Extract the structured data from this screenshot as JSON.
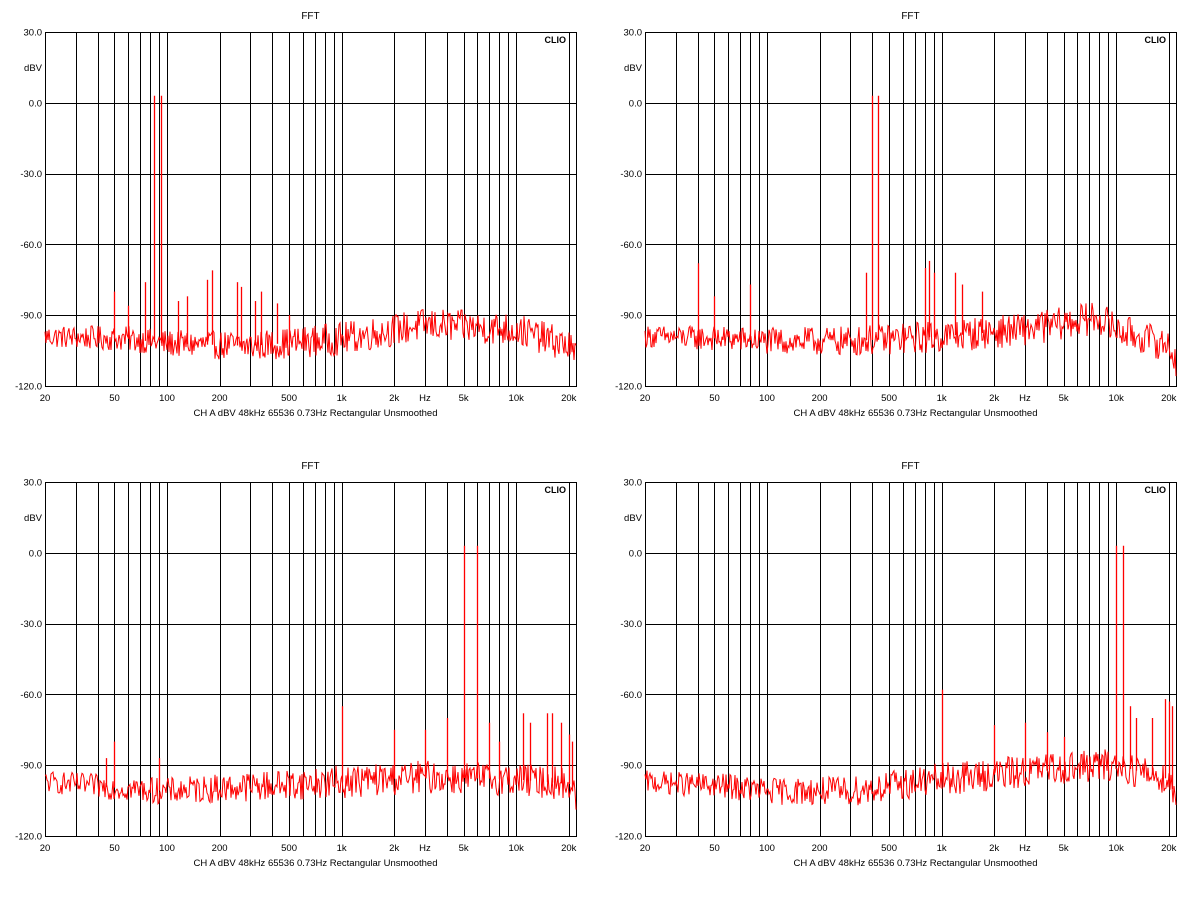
{
  "chart_data": [
    {
      "type": "line",
      "title": "FFT",
      "brand": "CLIO",
      "ylabel": "dBV",
      "xlabel": "",
      "x_scale": "log",
      "xlim": [
        20,
        22000
      ],
      "ylim": [
        -120,
        30
      ],
      "y_ticks": [
        30,
        0,
        -30,
        -60,
        -90,
        -120
      ],
      "y_tick_labels": [
        "30.0",
        "0.0",
        "-30.0",
        "-60.0",
        "-90.0",
        "-120.0"
      ],
      "x_ticks": [
        20,
        50,
        100,
        200,
        500,
        1000,
        2000,
        3000,
        5000,
        10000,
        20000
      ],
      "x_tick_labels": [
        "20",
        "50",
        "100",
        "200",
        "500",
        "1k",
        "2k",
        "Hz",
        "5k",
        "10k",
        "20k"
      ],
      "footer": "CH A   dBV   48kHz   65536   0.73Hz   Rectangular   Unsmoothed",
      "grid": true,
      "series": [
        {
          "color": "#ff0000",
          "noise_floor": [
            [
              20,
              -99
            ],
            [
              60,
              -100
            ],
            [
              100,
              -102
            ],
            [
              300,
              -103
            ],
            [
              1000,
              -100
            ],
            [
              3000,
              -94
            ],
            [
              10000,
              -96
            ],
            [
              20000,
              -103
            ],
            [
              22000,
              -108
            ]
          ],
          "peaks": [
            [
              50,
              -80
            ],
            [
              60,
              -86
            ],
            [
              75,
              -76
            ],
            [
              84,
              3
            ],
            [
              92,
              3
            ],
            [
              115,
              -84
            ],
            [
              130,
              -82
            ],
            [
              170,
              -75
            ],
            [
              180,
              -71
            ],
            [
              250,
              -76
            ],
            [
              265,
              -78
            ],
            [
              320,
              -84
            ],
            [
              345,
              -80
            ],
            [
              425,
              -85
            ],
            [
              500,
              -90
            ]
          ]
        }
      ]
    },
    {
      "type": "line",
      "title": "FFT",
      "brand": "CLIO",
      "ylabel": "dBV",
      "xlabel": "",
      "x_scale": "log",
      "xlim": [
        20,
        22000
      ],
      "ylim": [
        -120,
        30
      ],
      "y_ticks": [
        30,
        0,
        -30,
        -60,
        -90,
        -120
      ],
      "y_tick_labels": [
        "30.0",
        "0.0",
        "-30.0",
        "-60.0",
        "-90.0",
        "-120.0"
      ],
      "x_ticks": [
        20,
        50,
        100,
        200,
        500,
        1000,
        2000,
        3000,
        5000,
        10000,
        20000
      ],
      "x_tick_labels": [
        "20",
        "50",
        "100",
        "200",
        "500",
        "1k",
        "2k",
        "Hz",
        "5k",
        "10k",
        "20k"
      ],
      "footer": "CH A   dBV   48kHz   65536   0.73Hz   Rectangular   Unsmoothed",
      "grid": true,
      "series": [
        {
          "color": "#ff0000",
          "noise_floor": [
            [
              20,
              -99
            ],
            [
              60,
              -100
            ],
            [
              100,
              -101
            ],
            [
              300,
              -101
            ],
            [
              1000,
              -99
            ],
            [
              3000,
              -96
            ],
            [
              8000,
              -91
            ],
            [
              10000,
              -96
            ],
            [
              20000,
              -103
            ],
            [
              22000,
              -109
            ]
          ],
          "peaks": [
            [
              40,
              -68
            ],
            [
              50,
              -82
            ],
            [
              80,
              -77
            ],
            [
              370,
              -72
            ],
            [
              400,
              3
            ],
            [
              430,
              3
            ],
            [
              800,
              -70
            ],
            [
              850,
              -67
            ],
            [
              900,
              -72
            ],
            [
              1200,
              -72
            ],
            [
              1300,
              -77
            ],
            [
              1700,
              -80
            ]
          ]
        }
      ]
    },
    {
      "type": "line",
      "title": "FFT",
      "brand": "CLIO",
      "ylabel": "dBV",
      "xlabel": "",
      "x_scale": "log",
      "xlim": [
        20,
        22000
      ],
      "ylim": [
        -120,
        30
      ],
      "y_ticks": [
        30,
        0,
        -30,
        -60,
        -90,
        -120
      ],
      "y_tick_labels": [
        "30.0",
        "0.0",
        "-30.0",
        "-60.0",
        "-90.0",
        "-120.0"
      ],
      "x_ticks": [
        20,
        50,
        100,
        200,
        500,
        1000,
        2000,
        3000,
        5000,
        10000,
        20000
      ],
      "x_tick_labels": [
        "20",
        "50",
        "100",
        "200",
        "500",
        "1k",
        "2k",
        "Hz",
        "5k",
        "10k",
        "20k"
      ],
      "footer": "CH A   dBV   48kHz   65536   0.73Hz   Rectangular   Unsmoothed",
      "grid": true,
      "series": [
        {
          "color": "#ff0000",
          "noise_floor": [
            [
              20,
              -97
            ],
            [
              60,
              -100
            ],
            [
              100,
              -101
            ],
            [
              300,
              -99
            ],
            [
              1000,
              -97
            ],
            [
              3000,
              -95
            ],
            [
              10000,
              -96
            ],
            [
              20000,
              -98
            ],
            [
              22000,
              -104
            ]
          ],
          "peaks": [
            [
              45,
              -87
            ],
            [
              50,
              -80
            ],
            [
              90,
              -87
            ],
            [
              1000,
              -65
            ],
            [
              2000,
              -75
            ],
            [
              3000,
              -75
            ],
            [
              4000,
              -70
            ],
            [
              5000,
              3
            ],
            [
              6000,
              3
            ],
            [
              7000,
              -72
            ],
            [
              8000,
              -80
            ],
            [
              11000,
              -68
            ],
            [
              12000,
              -72
            ],
            [
              15000,
              -68
            ],
            [
              16000,
              -68
            ],
            [
              18000,
              -72
            ],
            [
              20000,
              -77
            ],
            [
              21000,
              -80
            ]
          ]
        }
      ]
    },
    {
      "type": "line",
      "title": "FFT",
      "brand": "CLIO",
      "ylabel": "dBV",
      "xlabel": "",
      "x_scale": "log",
      "xlim": [
        20,
        22000
      ],
      "ylim": [
        -120,
        30
      ],
      "y_ticks": [
        30,
        0,
        -30,
        -60,
        -90,
        -120
      ],
      "y_tick_labels": [
        "30.0",
        "0.0",
        "-30.0",
        "-60.0",
        "-90.0",
        "-120.0"
      ],
      "x_ticks": [
        20,
        50,
        100,
        200,
        500,
        1000,
        2000,
        3000,
        5000,
        10000,
        20000
      ],
      "x_tick_labels": [
        "20",
        "50",
        "100",
        "200",
        "500",
        "1k",
        "2k",
        "Hz",
        "5k",
        "10k",
        "20k"
      ],
      "footer": "CH A   dBV   48kHz   65536   0.73Hz   Rectangular   Unsmoothed",
      "grid": true,
      "series": [
        {
          "color": "#ff0000",
          "noise_floor": [
            [
              20,
              -97
            ],
            [
              60,
              -99
            ],
            [
              100,
              -101
            ],
            [
              300,
              -101
            ],
            [
              1000,
              -96
            ],
            [
              2000,
              -94
            ],
            [
              5000,
              -91
            ],
            [
              10000,
              -90
            ],
            [
              20000,
              -96
            ],
            [
              22000,
              -104
            ]
          ],
          "peaks": [
            [
              1000,
              -58
            ],
            [
              2000,
              -73
            ],
            [
              3000,
              -72
            ],
            [
              4000,
              -76
            ],
            [
              5000,
              -78
            ],
            [
              10000,
              3
            ],
            [
              11000,
              3
            ],
            [
              12000,
              -65
            ],
            [
              13000,
              -70
            ],
            [
              16000,
              -70
            ],
            [
              19000,
              -62
            ],
            [
              20000,
              -63
            ],
            [
              21000,
              -65
            ]
          ]
        }
      ]
    }
  ]
}
